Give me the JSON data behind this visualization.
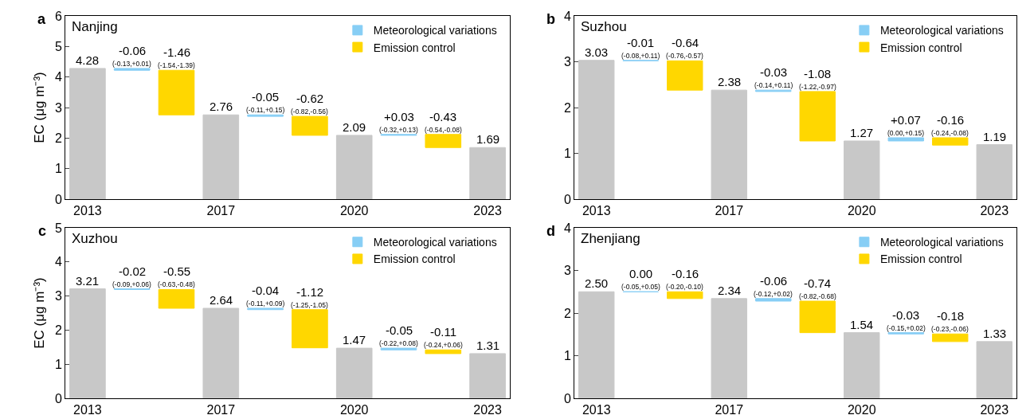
{
  "chart_data": [
    {
      "type": "bar",
      "title": "Nanjing",
      "ylabel": "EC (μg m⁻³)",
      "annotations": [
        "a"
      ],
      "categories": [
        "2013",
        null,
        null,
        "2017",
        null,
        null,
        "2020",
        null,
        null,
        "2023"
      ],
      "ylim": [
        0,
        6
      ],
      "yticks": [
        0,
        1,
        2,
        3,
        4,
        5,
        6
      ],
      "grid": false,
      "legend": "top right",
      "series": [
        {
          "color": "#c8c8c8",
          "values": [
            4.28,
            null,
            null,
            2.76,
            null,
            null,
            2.09,
            null,
            null,
            1.69
          ],
          "value_labels": [
            "4.28",
            null,
            null,
            "2.76",
            null,
            null,
            "2.09",
            null,
            null,
            "1.69"
          ]
        },
        {
          "name": "Meteorological variations",
          "color": "#87cef5",
          "values": [
            null,
            -0.06,
            null,
            null,
            -0.05,
            null,
            null,
            0.03,
            null,
            null
          ],
          "base": [
            null,
            4.28,
            null,
            null,
            2.76,
            null,
            null,
            2.09,
            null,
            null
          ],
          "value_labels": [
            null,
            "-0.06\n(-0.13,+0.01)",
            null,
            null,
            "-0.05\n(-0.11,+0.15)",
            null,
            null,
            "+0.03\n(-0.32,+0.13)",
            null,
            null
          ]
        },
        {
          "name": "Emission control",
          "color": "#ffd700",
          "values": [
            null,
            null,
            -1.46,
            null,
            null,
            -0.62,
            null,
            null,
            -0.43,
            null
          ],
          "base": [
            null,
            null,
            4.22,
            null,
            null,
            2.71,
            null,
            null,
            2.12,
            null
          ],
          "value_labels": [
            null,
            null,
            "-1.46\n(-1.54,-1.39)",
            null,
            null,
            "-0.62\n(-0.82,-0.56)",
            null,
            null,
            "-0.43\n(-0.54,-0.08)",
            null
          ]
        }
      ]
    },
    {
      "type": "bar",
      "title": "Suzhou",
      "annotations": [
        "b"
      ],
      "categories": [
        "2013",
        null,
        null,
        "2017",
        null,
        null,
        "2020",
        null,
        null,
        "2023"
      ],
      "ylim": [
        0,
        4
      ],
      "yticks": [
        0,
        1,
        2,
        3,
        4
      ],
      "grid": false,
      "legend": "top right",
      "series": [
        {
          "color": "#c8c8c8",
          "values": [
            3.03,
            null,
            null,
            2.38,
            null,
            null,
            1.27,
            null,
            null,
            1.19
          ],
          "value_labels": [
            "3.03",
            null,
            null,
            "2.38",
            null,
            null,
            "1.27",
            null,
            null,
            "1.19"
          ]
        },
        {
          "name": "Meteorological variations",
          "color": "#87cef5",
          "values": [
            null,
            -0.01,
            null,
            null,
            -0.03,
            null,
            null,
            0.07,
            null,
            null
          ],
          "base": [
            null,
            3.03,
            null,
            null,
            2.38,
            null,
            null,
            1.27,
            null,
            null
          ],
          "value_labels": [
            null,
            "-0.01\n(-0.08,+0.11)",
            null,
            null,
            "-0.03\n(-0.14,+0.11)",
            null,
            null,
            "+0.07\n(0.00,+0.15)",
            null,
            null
          ]
        },
        {
          "name": "Emission control",
          "color": "#ffd700",
          "values": [
            null,
            null,
            -0.64,
            null,
            null,
            -1.08,
            null,
            null,
            -0.16,
            null
          ],
          "base": [
            null,
            null,
            3.02,
            null,
            null,
            2.35,
            null,
            null,
            1.34,
            null
          ],
          "value_labels": [
            null,
            null,
            "-0.64\n(-0.76,-0.57)",
            null,
            null,
            "-1.08\n(-1.22,-0.97)",
            null,
            null,
            "-0.16\n(-0.24,-0.08)",
            null
          ]
        }
      ]
    },
    {
      "type": "bar",
      "title": "Xuzhou",
      "ylabel": "EC (μg m⁻³)",
      "annotations": [
        "c"
      ],
      "categories": [
        "2013",
        null,
        null,
        "2017",
        null,
        null,
        "2020",
        null,
        null,
        "2023"
      ],
      "ylim": [
        0,
        5
      ],
      "yticks": [
        0,
        1,
        2,
        3,
        4,
        5
      ],
      "grid": false,
      "legend": "top right",
      "series": [
        {
          "color": "#c8c8c8",
          "values": [
            3.21,
            null,
            null,
            2.64,
            null,
            null,
            1.47,
            null,
            null,
            1.31
          ],
          "value_labels": [
            "3.21",
            null,
            null,
            "2.64",
            null,
            null,
            "1.47",
            null,
            null,
            "1.31"
          ]
        },
        {
          "name": "Meteorological variations",
          "color": "#87cef5",
          "values": [
            null,
            -0.02,
            null,
            null,
            -0.04,
            null,
            null,
            -0.05,
            null,
            null
          ],
          "base": [
            null,
            3.21,
            null,
            null,
            2.64,
            null,
            null,
            1.47,
            null,
            null
          ],
          "value_labels": [
            null,
            "-0.02\n(-0.09,+0.06)",
            null,
            null,
            "-0.04\n(-0.11,+0.09)",
            null,
            null,
            "-0.05\n(-0.22,+0.08)",
            null,
            null
          ]
        },
        {
          "name": "Emission control",
          "color": "#ffd700",
          "values": [
            null,
            null,
            -0.55,
            null,
            null,
            -1.12,
            null,
            null,
            -0.11,
            null
          ],
          "base": [
            null,
            null,
            3.19,
            null,
            null,
            2.6,
            null,
            null,
            1.42,
            null
          ],
          "value_labels": [
            null,
            null,
            "-0.55\n(-0.63,-0.48)",
            null,
            null,
            "-1.12\n(-1.25,-1.05)",
            null,
            null,
            "-0.11\n(-0.24,+0.06)",
            null
          ]
        }
      ]
    },
    {
      "type": "bar",
      "title": "Zhenjiang",
      "annotations": [
        "d"
      ],
      "categories": [
        "2013",
        null,
        null,
        "2017",
        null,
        null,
        "2020",
        null,
        null,
        "2023"
      ],
      "ylim": [
        0,
        4
      ],
      "yticks": [
        0,
        1,
        2,
        3,
        4
      ],
      "grid": false,
      "legend": "top right",
      "series": [
        {
          "color": "#c8c8c8",
          "values": [
            2.5,
            null,
            null,
            2.34,
            null,
            null,
            1.54,
            null,
            null,
            1.33
          ],
          "value_labels": [
            "2.50",
            null,
            null,
            "2.34",
            null,
            null,
            "1.54",
            null,
            null,
            "1.33"
          ]
        },
        {
          "name": "Meteorological variations",
          "color": "#87cef5",
          "values": [
            null,
            0,
            null,
            null,
            -0.06,
            null,
            null,
            -0.03,
            null,
            null
          ],
          "base": [
            null,
            2.5,
            null,
            null,
            2.34,
            null,
            null,
            1.54,
            null,
            null
          ],
          "value_labels": [
            null,
            "0.00\n(-0.05,+0.05)",
            null,
            null,
            "-0.06\n(-0.12,+0.02)",
            null,
            null,
            "-0.03\n(-0.15,+0.02)",
            null,
            null
          ]
        },
        {
          "name": "Emission control",
          "color": "#ffd700",
          "values": [
            null,
            null,
            -0.16,
            null,
            null,
            -0.74,
            null,
            null,
            -0.18,
            null
          ],
          "base": [
            null,
            null,
            2.5,
            null,
            null,
            2.28,
            null,
            null,
            1.51,
            null
          ],
          "value_labels": [
            null,
            null,
            "-0.16\n(-0.20,-0.10)",
            null,
            null,
            "-0.74\n(-0.82,-0.68)",
            null,
            null,
            "-0.18\n(-0.23,-0.06)",
            null
          ]
        }
      ]
    }
  ]
}
